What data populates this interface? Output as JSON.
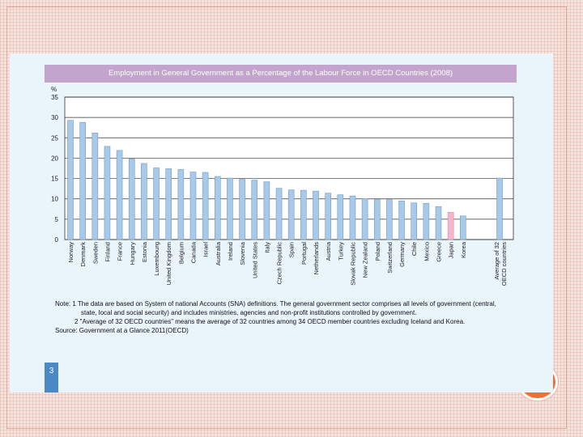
{
  "slide": {
    "page_number": "3"
  },
  "notes": {
    "note1": "Note: 1 The data are based on System of national Accounts (SNA) definitions. The general government sector comprises all levels of government (central, state, local and social security) and includes ministries, agencies and non-profit institutions controlled by government.",
    "note2": "2 \"Average of 32 OECD countries\" means the average of 32 countries among 34 OECD member countries excluding Iceland and Korea.",
    "source": "Source: Government at a Glance 2011(OECD)"
  },
  "chart_data": {
    "type": "bar",
    "title": "Employment in General Government as a Percentage of the Labour Force in OECD Countries (2008)",
    "ylabel": "%",
    "ylim": [
      0,
      35
    ],
    "yticks": [
      0,
      5,
      10,
      15,
      20,
      25,
      30,
      35
    ],
    "categories": [
      "Norway",
      "Denmark",
      "Sweden",
      "Finland",
      "France",
      "Hungary",
      "Estonia",
      "Luxembourg",
      "United Kingdom",
      "Belgium",
      "Canada",
      "Israel",
      "Australia",
      "Ireland",
      "Slovenia",
      "United States",
      "Italy",
      "Czech Republic",
      "Spain",
      "Portugal",
      "Netherlands",
      "Austria",
      "Turkey",
      "Slovak Republic",
      "New Zealand",
      "Poland",
      "Switzerland",
      "Germany",
      "Chile",
      "Mexico",
      "Greece",
      "Japan",
      "Korea"
    ],
    "values": [
      29.3,
      28.8,
      26.2,
      22.9,
      21.9,
      19.8,
      18.7,
      17.6,
      17.4,
      17.2,
      16.6,
      16.5,
      15.5,
      15.1,
      14.8,
      14.6,
      14.2,
      12.6,
      12.2,
      12.1,
      11.9,
      11.4,
      11.0,
      10.7,
      10.0,
      9.9,
      9.8,
      9.5,
      9.0,
      8.9,
      8.1,
      6.7,
      5.8
    ],
    "highlight": {
      "category": "Japan",
      "color": "#f4b6c8"
    },
    "average": {
      "label": "Average of 32 OECD countries",
      "value": 15.1
    },
    "grid": true,
    "bar_color": "#a9c9e8",
    "bar_edge_color": "#6e9cc9"
  }
}
